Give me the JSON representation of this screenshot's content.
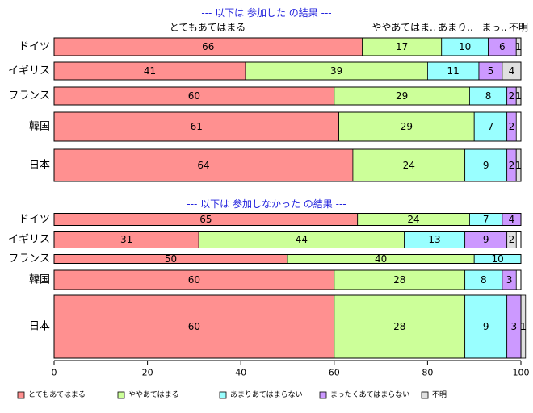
{
  "chart_data": {
    "type": "bar",
    "orientation": "horizontal-stacked",
    "xlim": [
      0,
      100
    ],
    "x_ticks": [
      "0",
      "20",
      "40",
      "60",
      "80",
      "100"
    ],
    "categories_legend": [
      "とてもあてはまる",
      "ややあてはまる",
      "あまりあてはまらない",
      "まったくあてはまらない",
      "不明"
    ],
    "colors": [
      "#ff9090",
      "#ccff99",
      "#99ffff",
      "#cc99ff",
      "#e0e0e0"
    ],
    "panels": [
      {
        "title": "--- 以下は 参加した の結果 ---",
        "header_labels": [
          "とてもあてはまる",
          "ややあてはま..",
          "あまり..",
          "まっ..",
          "不明"
        ],
        "rows": [
          {
            "label": "ドイツ",
            "values": [
              66,
              17,
              10,
              6,
              1
            ]
          },
          {
            "label": "イギリス",
            "values": [
              41,
              39,
              11,
              5,
              4
            ]
          },
          {
            "label": "フランス",
            "values": [
              60,
              29,
              8,
              2,
              1
            ]
          },
          {
            "label": "韓国",
            "values": [
              61,
              29,
              7,
              2,
              0
            ]
          },
          {
            "label": "日本",
            "values": [
              64,
              24,
              9,
              2,
              1
            ]
          }
        ]
      },
      {
        "title": "--- 以下は 参加しなかった の結果 ---",
        "rows": [
          {
            "label": "ドイツ",
            "values": [
              65,
              24,
              7,
              4,
              0
            ]
          },
          {
            "label": "イギリス",
            "values": [
              31,
              44,
              13,
              9,
              2
            ]
          },
          {
            "label": "フランス",
            "values": [
              50,
              40,
              10,
              0,
              0
            ]
          },
          {
            "label": "韓国",
            "values": [
              60,
              28,
              8,
              3,
              0
            ]
          },
          {
            "label": "日本",
            "values": [
              60,
              28,
              9,
              3,
              1
            ]
          }
        ]
      }
    ]
  }
}
